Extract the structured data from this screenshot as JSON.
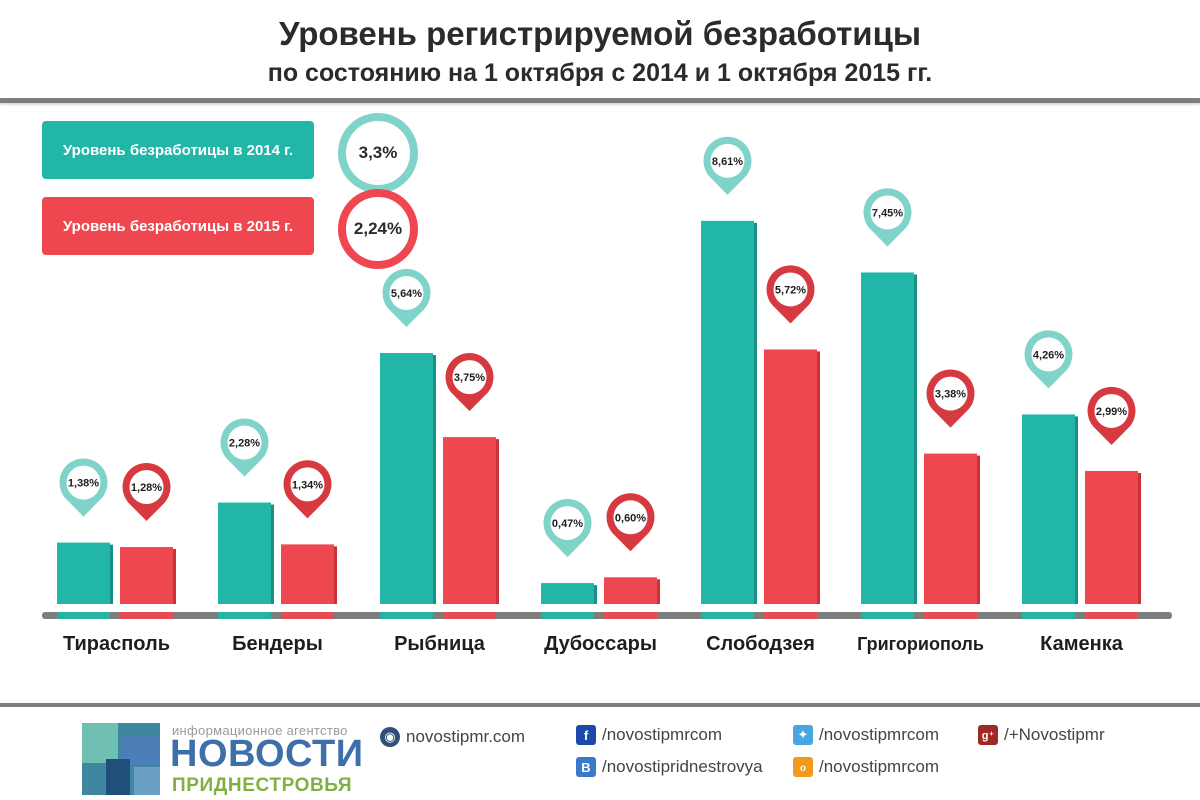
{
  "title": {
    "line1": "Уровень регистрируемой безработицы",
    "line2": "по состоянию на 1 октября с 2014 и 1 октября 2015 гг."
  },
  "legend": [
    {
      "label": "Уровень безработицы в 2014 г.",
      "value": "3,3%",
      "color": "#22b6a8"
    },
    {
      "label": "Уровень безработицы в 2015 г.",
      "value": "2,24%",
      "color": "#ef4750"
    }
  ],
  "chart_data": {
    "type": "bar",
    "categories": [
      "Тирасполь",
      "Бендеры",
      "Рыбница",
      "Дубоссары",
      "Слободзея",
      "Григориополь",
      "Каменка"
    ],
    "series": [
      {
        "name": "Уровень безработицы в 2014 г.",
        "color": "#22b6a8",
        "values": [
          1.38,
          2.28,
          5.64,
          0.47,
          8.61,
          7.45,
          4.26
        ],
        "labels": [
          "1,38%",
          "2,28%",
          "5,64%",
          "0,47%",
          "8,61%",
          "7,45%",
          "4,26%"
        ]
      },
      {
        "name": "Уровень безработицы в 2015 г.",
        "color": "#ef4750",
        "values": [
          1.28,
          1.34,
          3.75,
          0.6,
          5.72,
          3.38,
          2.99
        ],
        "labels": [
          "1,28%",
          "1,34%",
          "3,75%",
          "0,60%",
          "5,72%",
          "3,38%",
          "2,99%"
        ]
      }
    ],
    "ylim": [
      0,
      9
    ],
    "grid": false
  },
  "footer": {
    "agency_small": "информационное агентство",
    "agency_name": "НОВОСТИ",
    "agency_region": "ПРИДНЕСТРОВЬЯ",
    "links": [
      {
        "icon": "globe-icon",
        "glyph": "◉",
        "color": "#2f4f78",
        "text": "novostipmr.com"
      },
      {
        "icon": "facebook-icon",
        "glyph": "f",
        "color": "#1d49a8",
        "text": "/novostipmrcom"
      },
      {
        "icon": "vk-icon",
        "glyph": "B",
        "color": "#3d77c9",
        "text": "/novostipridnestrovya"
      },
      {
        "icon": "twitter-icon",
        "glyph": "✦",
        "color": "#4aa6e0",
        "text": "/novostipmrcom"
      },
      {
        "icon": "odnoklassniki-icon",
        "glyph": "ℴ",
        "color": "#f29a1e",
        "text": "/novostipmrcom"
      },
      {
        "icon": "googleplus-icon",
        "glyph": "g⁺",
        "color": "#9e2a23",
        "text": "/+Novostipmr"
      }
    ]
  }
}
